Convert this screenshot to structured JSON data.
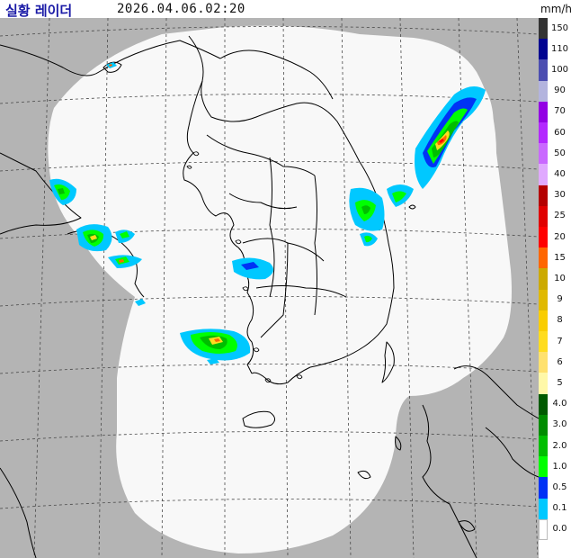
{
  "header": {
    "title": "실황 레이더",
    "timestamp": "2026.04.06.02:20",
    "unit": "mm/h"
  },
  "colors": {
    "background_outside": "#b4b4b4",
    "coverage": "#f8f8f8",
    "coastline": "#000000",
    "grid": "#4a4a4a"
  },
  "legend": [
    {
      "label": "150",
      "color": "#333333"
    },
    {
      "label": "110",
      "color": "#000390"
    },
    {
      "label": "100",
      "color": "#4c4eb1"
    },
    {
      "label": "90",
      "color": "#b3b4de"
    },
    {
      "label": "70",
      "color": "#9300e4"
    },
    {
      "label": "60",
      "color": "#b329ff"
    },
    {
      "label": "50",
      "color": "#c969ff"
    },
    {
      "label": "40",
      "color": "#e0a9ff"
    },
    {
      "label": "30",
      "color": "#b40000"
    },
    {
      "label": "25",
      "color": "#e00000"
    },
    {
      "label": "20",
      "color": "#ff0000"
    },
    {
      "label": "15",
      "color": "#ff6600"
    },
    {
      "label": "10",
      "color": "#ccaa00"
    },
    {
      "label": "9",
      "color": "#e0b900"
    },
    {
      "label": "8",
      "color": "#f9cd00"
    },
    {
      "label": "7",
      "color": "#ffdc1f"
    },
    {
      "label": "6",
      "color": "#ffe16e"
    },
    {
      "label": "5",
      "color": "#fff8a8"
    },
    {
      "label": "4.0",
      "color": "#005a00"
    },
    {
      "label": "3.0",
      "color": "#008c00"
    },
    {
      "label": "2.0",
      "color": "#00be00"
    },
    {
      "label": "1.0",
      "color": "#00ff00"
    },
    {
      "label": "0.5",
      "color": "#0033f5"
    },
    {
      "label": "0.1",
      "color": "#00c8ff"
    },
    {
      "label": "0.0",
      "color": "#ffffff"
    }
  ]
}
